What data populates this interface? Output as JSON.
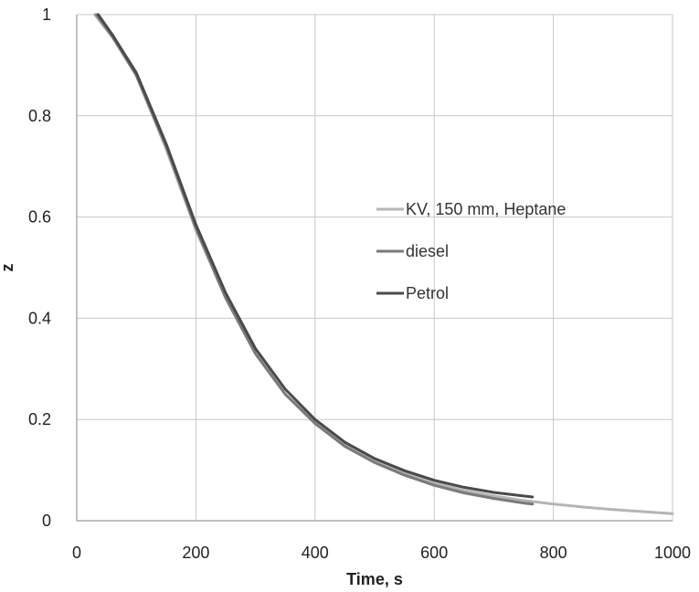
{
  "chart_data": {
    "type": "line",
    "xlabel": "Time, s",
    "ylabel": "z",
    "xlim": [
      0,
      1000
    ],
    "ylim": [
      0,
      1
    ],
    "x_ticks": [
      "0",
      "200",
      "400",
      "600",
      "800",
      "1000"
    ],
    "y_ticks": [
      "0",
      "0.2",
      "0.4",
      "0.6",
      "0.8",
      "1"
    ],
    "grid": true,
    "legend_position": "right-center",
    "series": [
      {
        "name": "KV, 150 mm, Heptane",
        "color": "#b5b5b5",
        "x": [
          30,
          60,
          100,
          150,
          200,
          250,
          300,
          350,
          400,
          450,
          500,
          550,
          600,
          650,
          700,
          750,
          800,
          850,
          900,
          950,
          1000
        ],
        "y": [
          1.0,
          0.955,
          0.88,
          0.735,
          0.575,
          0.44,
          0.33,
          0.25,
          0.195,
          0.15,
          0.118,
          0.094,
          0.075,
          0.06,
          0.049,
          0.04,
          0.033,
          0.027,
          0.022,
          0.018,
          0.014
        ]
      },
      {
        "name": "diesel",
        "color": "#7a7a7a",
        "x": [
          33,
          60,
          100,
          150,
          200,
          250,
          300,
          350,
          400,
          450,
          500,
          550,
          600,
          650,
          700,
          750,
          765
        ],
        "y": [
          1.0,
          0.957,
          0.88,
          0.74,
          0.578,
          0.44,
          0.33,
          0.25,
          0.192,
          0.147,
          0.115,
          0.09,
          0.07,
          0.055,
          0.044,
          0.035,
          0.033
        ]
      },
      {
        "name": "Petrol",
        "color": "#4a4a4a",
        "x": [
          36,
          60,
          100,
          150,
          200,
          250,
          300,
          350,
          400,
          450,
          500,
          550,
          600,
          650,
          700,
          750,
          765
        ],
        "y": [
          1.0,
          0.96,
          0.885,
          0.745,
          0.585,
          0.45,
          0.34,
          0.26,
          0.2,
          0.155,
          0.123,
          0.099,
          0.08,
          0.066,
          0.056,
          0.049,
          0.047
        ]
      }
    ]
  }
}
